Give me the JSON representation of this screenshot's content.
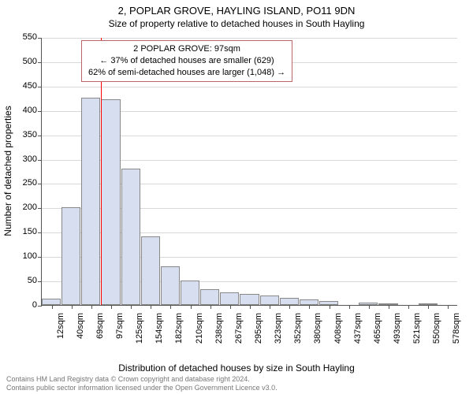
{
  "title": "2, POPLAR GROVE, HAYLING ISLAND, PO11 9DN",
  "subtitle": "Size of property relative to detached houses in South Hayling",
  "ylabel": "Number of detached properties",
  "xlabel": "Distribution of detached houses by size in South Hayling",
  "chart": {
    "type": "bar",
    "bar_fill": "#d6deef",
    "bar_border": "#888888",
    "grid_color": "#d8d8d8",
    "axis_color": "#555555",
    "indicator_color": "#ff0000",
    "indicator_x": 97,
    "ylim": [
      0,
      550
    ],
    "ytick_step": 50,
    "categories": [
      "12sqm",
      "40sqm",
      "69sqm",
      "97sqm",
      "125sqm",
      "154sqm",
      "182sqm",
      "210sqm",
      "238sqm",
      "267sqm",
      "295sqm",
      "323sqm",
      "352sqm",
      "380sqm",
      "408sqm",
      "437sqm",
      "465sqm",
      "493sqm",
      "521sqm",
      "550sqm",
      "578sqm"
    ],
    "values": [
      13,
      200,
      425,
      422,
      280,
      140,
      80,
      50,
      32,
      26,
      22,
      20,
      15,
      12,
      8,
      0,
      5,
      4,
      0,
      3,
      0
    ]
  },
  "annotation": {
    "line1": "2 POPLAR GROVE: 97sqm",
    "line2": "← 37% of detached houses are smaller (629)",
    "line3": "62% of semi-detached houses are larger (1,048) →"
  },
  "footer": {
    "line1": "Contains HM Land Registry data © Crown copyright and database right 2024.",
    "line2": "Contains public sector information licensed under the Open Government Licence v3.0."
  }
}
